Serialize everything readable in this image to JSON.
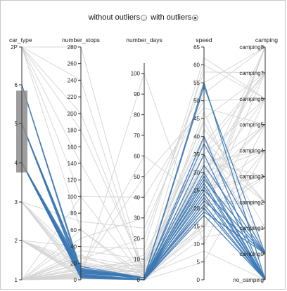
{
  "controls": {
    "without_label": "without outliers",
    "with_label": "with outliers",
    "selected": "with outliers"
  },
  "colors": {
    "highlight": "#3b78b4",
    "background_lines": "#d3d3d3",
    "brush": "#8c8c8c",
    "axis": "#333333"
  },
  "chart_data": {
    "type": "parallel_coordinates",
    "dimensions": [
      {
        "name": "car_type",
        "type": "ordinal",
        "ticks": [
          "1",
          "2",
          "3",
          "4",
          "5",
          "6",
          "2P"
        ]
      },
      {
        "name": "number_stops",
        "type": "numeric",
        "range": [
          0,
          280
        ],
        "ticks": [
          0,
          20,
          40,
          60,
          80,
          100,
          120,
          140,
          160,
          180,
          200,
          220,
          240,
          260,
          280
        ]
      },
      {
        "name": "number_days",
        "type": "numeric",
        "range": [
          0,
          105
        ],
        "ticks": [
          0,
          10,
          20,
          30,
          40,
          50,
          60,
          70,
          80,
          90,
          100
        ]
      },
      {
        "name": "speed",
        "type": "numeric",
        "range": [
          0,
          65
        ],
        "ticks": [
          0,
          5,
          10,
          15,
          20,
          25,
          30,
          35,
          40,
          45,
          50,
          55,
          60,
          65
        ]
      },
      {
        "name": "camping",
        "type": "ordinal",
        "ticks": [
          "no_camping",
          "camping0",
          "camping1",
          "camping2",
          "camping3",
          "camping4",
          "camping5",
          "camping6",
          "camping7",
          "camping8"
        ]
      }
    ],
    "brush": {
      "dimension": "car_type",
      "range": [
        3.75,
        6.15
      ]
    },
    "highlighted": [
      {
        "car_type": "6",
        "number_stops": 8,
        "number_days": 1,
        "speed": 55,
        "camping": "no_camping"
      },
      {
        "car_type": "6",
        "number_stops": 12,
        "number_days": 1,
        "speed": 54,
        "camping": "camping0"
      },
      {
        "car_type": "5",
        "number_stops": 10,
        "number_days": 1,
        "speed": 40,
        "camping": "no_camping"
      },
      {
        "car_type": "5",
        "number_stops": 14,
        "number_days": 1,
        "speed": 38,
        "camping": "camping0"
      },
      {
        "car_type": "5",
        "number_stops": 6,
        "number_days": 0,
        "speed": 35,
        "camping": "no_camping"
      },
      {
        "car_type": "4",
        "number_stops": 9,
        "number_days": 1,
        "speed": 32,
        "camping": "camping0"
      },
      {
        "car_type": "4",
        "number_stops": 4,
        "number_days": 0,
        "speed": 30,
        "camping": "no_camping"
      },
      {
        "car_type": "4",
        "number_stops": 11,
        "number_days": 1,
        "speed": 29,
        "camping": "no_camping"
      },
      {
        "car_type": "4",
        "number_stops": 7,
        "number_days": 0,
        "speed": 28,
        "camping": "camping0"
      },
      {
        "car_type": "4",
        "number_stops": 16,
        "number_days": 1,
        "speed": 27,
        "camping": "no_camping"
      },
      {
        "car_type": "4",
        "number_stops": 5,
        "number_days": 0,
        "speed": 26,
        "camping": "no_camping"
      },
      {
        "car_type": "4",
        "number_stops": 13,
        "number_days": 1,
        "speed": 25,
        "camping": "camping0"
      },
      {
        "car_type": "4",
        "number_stops": 3,
        "number_days": 0,
        "speed": 24,
        "camping": "no_camping"
      },
      {
        "car_type": "4",
        "number_stops": 8,
        "number_days": 1,
        "speed": 23,
        "camping": "no_camping"
      },
      {
        "car_type": "5",
        "number_stops": 12,
        "number_days": 0,
        "speed": 22,
        "camping": "camping0"
      },
      {
        "car_type": "4",
        "number_stops": 6,
        "number_days": 0,
        "speed": 21,
        "camping": "no_camping"
      },
      {
        "car_type": "4",
        "number_stops": 10,
        "number_days": 1,
        "speed": 20,
        "camping": "no_camping"
      },
      {
        "car_type": "5",
        "number_stops": 4,
        "number_days": 0,
        "speed": 19,
        "camping": "camping0"
      },
      {
        "car_type": "4",
        "number_stops": 2,
        "number_days": 0,
        "speed": 18,
        "camping": "no_camping"
      }
    ],
    "background": [
      {
        "car_type": "1",
        "number_stops": 2,
        "number_days": 0,
        "speed": 20,
        "camping": "camping8"
      },
      {
        "car_type": "1",
        "number_stops": 5,
        "number_days": 2,
        "speed": 45,
        "camping": "camping7"
      },
      {
        "car_type": "1",
        "number_stops": 8,
        "number_days": 5,
        "speed": 60,
        "camping": "camping6"
      },
      {
        "car_type": "1",
        "number_stops": 3,
        "number_days": 100,
        "speed": 10,
        "camping": "camping5"
      },
      {
        "car_type": "1",
        "number_stops": 12,
        "number_days": 1,
        "speed": 30,
        "camping": "camping4"
      },
      {
        "car_type": "1",
        "number_stops": 20,
        "number_days": 3,
        "speed": 25,
        "camping": "camping3"
      },
      {
        "car_type": "1",
        "number_stops": 7,
        "number_days": 8,
        "speed": 35,
        "camping": "camping2"
      },
      {
        "car_type": "1",
        "number_stops": 30,
        "number_days": 0,
        "speed": 15,
        "camping": "camping1"
      },
      {
        "car_type": "1",
        "number_stops": 4,
        "number_days": 12,
        "speed": 40,
        "camping": "camping0"
      },
      {
        "car_type": "1",
        "number_stops": 60,
        "number_days": 2,
        "speed": 8,
        "camping": "no_camping"
      },
      {
        "car_type": "1",
        "number_stops": 100,
        "number_days": 40,
        "speed": 50,
        "camping": "camping6"
      },
      {
        "car_type": "1",
        "number_stops": 15,
        "number_days": 60,
        "speed": 22,
        "camping": "camping8"
      },
      {
        "car_type": "1",
        "number_stops": 1,
        "number_days": 0,
        "speed": 5,
        "camping": "camping4"
      },
      {
        "car_type": "1",
        "number_stops": 25,
        "number_days": 20,
        "speed": 58,
        "camping": "camping7"
      },
      {
        "car_type": "1",
        "number_stops": 9,
        "number_days": 4,
        "speed": 33,
        "camping": "camping3"
      },
      {
        "car_type": "2",
        "number_stops": 18,
        "number_days": 1,
        "speed": 27,
        "camping": "camping5"
      },
      {
        "car_type": "2",
        "number_stops": 10,
        "number_days": 6,
        "speed": 42,
        "camping": "camping2"
      },
      {
        "car_type": "2",
        "number_stops": 6,
        "number_days": 2,
        "speed": 18,
        "camping": "camping8"
      },
      {
        "car_type": "2",
        "number_stops": 40,
        "number_days": 15,
        "speed": 62,
        "camping": "camping6"
      },
      {
        "car_type": "2",
        "number_stops": 3,
        "number_days": 0,
        "speed": 12,
        "camping": "camping1"
      },
      {
        "car_type": "2",
        "number_stops": 14,
        "number_days": 9,
        "speed": 36,
        "camping": "camping7"
      },
      {
        "car_type": "2",
        "number_stops": 22,
        "number_days": 3,
        "speed": 24,
        "camping": "camping4"
      },
      {
        "car_type": "2",
        "number_stops": 8,
        "number_days": 1,
        "speed": 47,
        "camping": "camping0"
      },
      {
        "car_type": "3",
        "number_stops": 11,
        "number_days": 2,
        "speed": 31,
        "camping": "camping5"
      },
      {
        "car_type": "3",
        "number_stops": 5,
        "number_days": 0,
        "speed": 16,
        "camping": "camping3"
      },
      {
        "car_type": "3",
        "number_stops": 70,
        "number_days": 25,
        "speed": 52,
        "camping": "camping8"
      },
      {
        "car_type": "3",
        "number_stops": 16,
        "number_days": 7,
        "speed": 28,
        "camping": "camping6"
      },
      {
        "car_type": "3",
        "number_stops": 2,
        "number_days": 1,
        "speed": 21,
        "camping": "camping2"
      },
      {
        "car_type": "3",
        "number_stops": 26,
        "number_days": 4,
        "speed": 38,
        "camping": "camping7"
      },
      {
        "car_type": "2P",
        "number_stops": 140,
        "number_days": 1,
        "speed": 25,
        "camping": "camping5"
      },
      {
        "car_type": "2P",
        "number_stops": 200,
        "number_days": 3,
        "speed": 30,
        "camping": "camping7"
      },
      {
        "car_type": "2P",
        "number_stops": 280,
        "number_days": 2,
        "speed": 20,
        "camping": "camping3"
      },
      {
        "car_type": "2P",
        "number_stops": 240,
        "number_days": 0,
        "speed": 35,
        "camping": "camping6"
      },
      {
        "car_type": "2P",
        "number_stops": 180,
        "number_days": 5,
        "speed": 15,
        "camping": "camping4"
      },
      {
        "car_type": "2P",
        "number_stops": 100,
        "number_days": 1,
        "speed": 28,
        "camping": "camping8"
      },
      {
        "car_type": "2P",
        "number_stops": 60,
        "number_days": 0,
        "speed": 22,
        "camping": "camping2"
      },
      {
        "car_type": "1",
        "number_stops": 35,
        "number_days": 10,
        "speed": 44,
        "camping": "camping1"
      },
      {
        "car_type": "1",
        "number_stops": 13,
        "number_days": 50,
        "speed": 48,
        "camping": "camping5"
      },
      {
        "car_type": "1",
        "number_stops": 6,
        "number_days": 1,
        "speed": 14,
        "camping": "camping6"
      },
      {
        "car_type": "2",
        "number_stops": 4,
        "number_days": 0,
        "speed": 26,
        "camping": "camping3"
      },
      {
        "car_type": "1",
        "number_stops": 50,
        "number_days": 30,
        "speed": 55,
        "camping": "camping8"
      },
      {
        "car_type": "1",
        "number_stops": 19,
        "number_days": 2,
        "speed": 19,
        "camping": "camping7"
      },
      {
        "car_type": "3",
        "number_stops": 9,
        "number_days": 0,
        "speed": 33,
        "camping": "camping4"
      },
      {
        "car_type": "1",
        "number_stops": 28,
        "number_days": 6,
        "speed": 39,
        "camping": "camping2"
      }
    ]
  }
}
